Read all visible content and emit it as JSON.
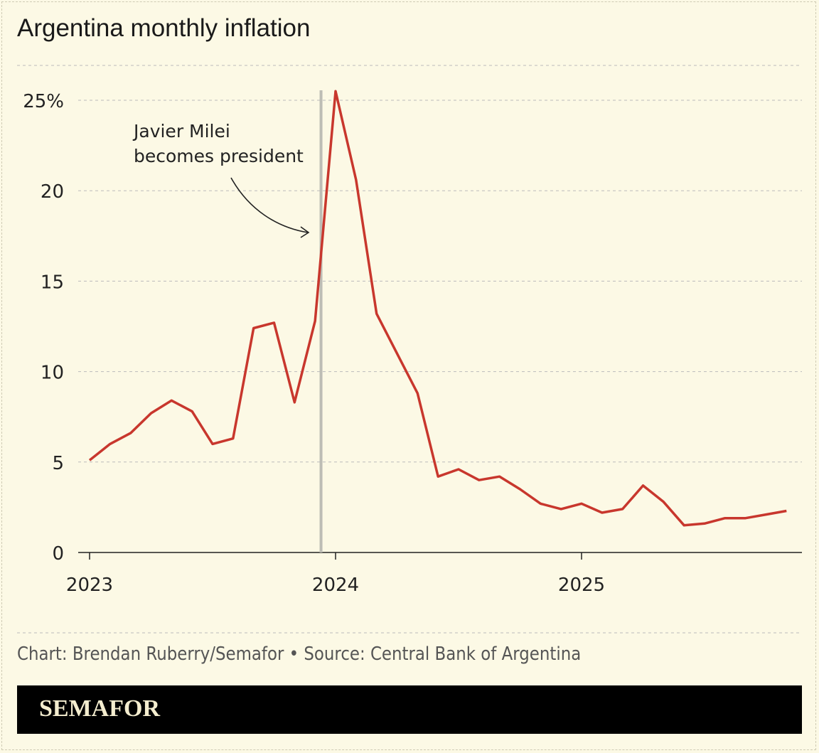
{
  "chart_data": {
    "type": "line",
    "title": "Argentina monthly inflation",
    "x_start": "2023-01",
    "x_tick_labels": [
      "2023",
      "2024",
      "2025"
    ],
    "y_tick_labels": [
      "0",
      "5",
      "10",
      "15",
      "20",
      "25%"
    ],
    "y_ticks": [
      0,
      5,
      10,
      15,
      20,
      25
    ],
    "ylim": [
      0,
      25.5
    ],
    "grid": true,
    "line_color": "#c8372d",
    "series": [
      {
        "x": [
          "2023-01",
          "2023-02",
          "2023-03",
          "2023-04",
          "2023-05",
          "2023-06",
          "2023-07",
          "2023-08",
          "2023-09",
          "2023-10",
          "2023-11",
          "2023-12",
          "2024-01",
          "2024-02",
          "2024-03",
          "2024-04",
          "2024-05",
          "2024-06",
          "2024-07",
          "2024-08",
          "2024-09",
          "2024-10",
          "2024-11",
          "2024-12",
          "2025-01",
          "2025-02",
          "2025-03",
          "2025-04",
          "2025-05",
          "2025-06",
          "2025-07",
          "2025-08",
          "2025-09",
          "2025-10",
          "2025-11"
        ],
        "values": [
          5.1,
          6.0,
          6.6,
          7.7,
          8.4,
          7.8,
          6.0,
          6.3,
          12.4,
          12.7,
          8.3,
          12.8,
          25.5,
          20.6,
          13.2,
          11.0,
          8.8,
          4.2,
          4.6,
          4.0,
          4.2,
          3.5,
          2.7,
          2.4,
          2.7,
          2.2,
          2.4,
          3.7,
          2.8,
          1.5,
          1.6,
          1.9,
          1.9,
          2.1,
          2.3
        ]
      }
    ],
    "annotation": {
      "date": "2023-12-10",
      "lines": [
        "Javier Milei",
        "becomes president"
      ]
    }
  },
  "footer": {
    "credit": "Chart: Brendan Ruberry/Semafor • Source: Central Bank of Argentina",
    "logo": "SEMAFOR"
  }
}
